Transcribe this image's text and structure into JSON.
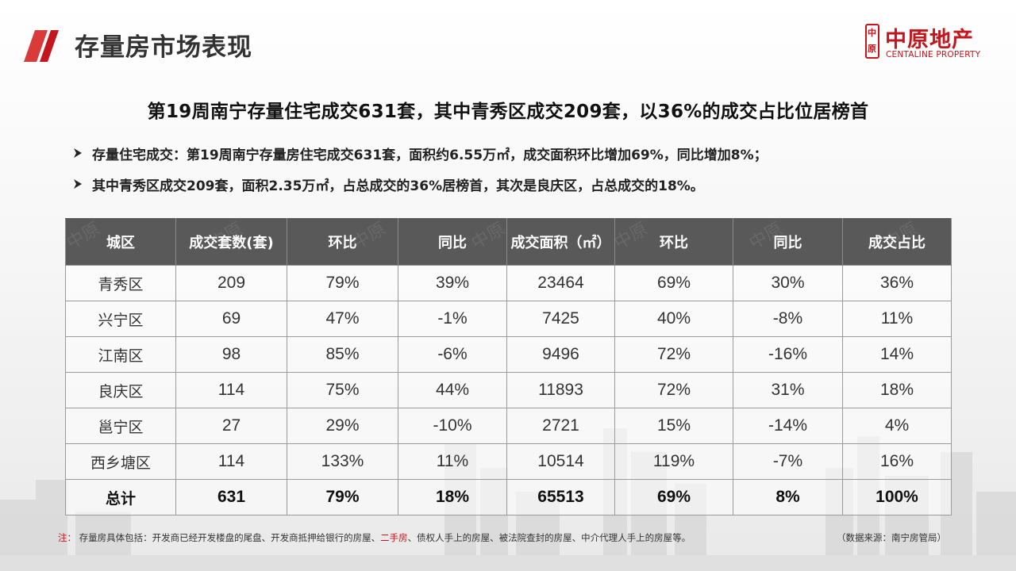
{
  "header": {
    "title": "存量房市场表现",
    "logo_cn": "中原地产",
    "logo_en": "CENTALINE PROPERTY",
    "logo_mark_glyphs": [
      "中",
      "原"
    ],
    "accent_color": "#c4161c"
  },
  "headline": "第19周南宁存量住宅成交631套，其中青秀区成交209套，以36%的成交占比位居榜首",
  "bullets": [
    "存量住宅成交：第19周南宁存量房住宅成交631套，面积约6.55万㎡，成交面积环比增加69%，同比增加8%；",
    "其中青秀区成交209套，面积2.35万㎡，占总成交的36%居榜首，其次是良庆区，占总成交的18%。"
  ],
  "table": {
    "headers": [
      "城区",
      "成交套数(套)",
      "环比",
      "同比",
      "成交面积（㎡）",
      "环比",
      "同比",
      "成交占比"
    ],
    "rows": [
      [
        "青秀区",
        "209",
        "79%",
        "39%",
        "23464",
        "69%",
        "30%",
        "36%"
      ],
      [
        "兴宁区",
        "69",
        "47%",
        "-1%",
        "7425",
        "40%",
        "-8%",
        "11%"
      ],
      [
        "江南区",
        "98",
        "85%",
        "-6%",
        "9496",
        "72%",
        "-16%",
        "14%"
      ],
      [
        "良庆区",
        "114",
        "75%",
        "44%",
        "11893",
        "72%",
        "31%",
        "18%"
      ],
      [
        "邕宁区",
        "27",
        "29%",
        "-10%",
        "2721",
        "15%",
        "-14%",
        "4%"
      ],
      [
        "西乡塘区",
        "114",
        "133%",
        "11%",
        "10514",
        "119%",
        "-7%",
        "16%"
      ],
      [
        "总计",
        "631",
        "79%",
        "18%",
        "65513",
        "69%",
        "8%",
        "100%"
      ]
    ],
    "header_bg": "#595959"
  },
  "footnote": {
    "label": "注：",
    "text_before": "存量房具体包括：开发商已经开发楼盘的尾盘、开发商抵押给银行的房屋、",
    "highlight": "二手房",
    "text_after": "、债权人手上的房屋、被法院查封的房屋、中介代理人手上的房屋等。",
    "source": "（数据来源：南宁房管局）"
  },
  "icons": {
    "header_accent": "red-slash-icon",
    "bullet": "arrow-bullet-icon"
  }
}
